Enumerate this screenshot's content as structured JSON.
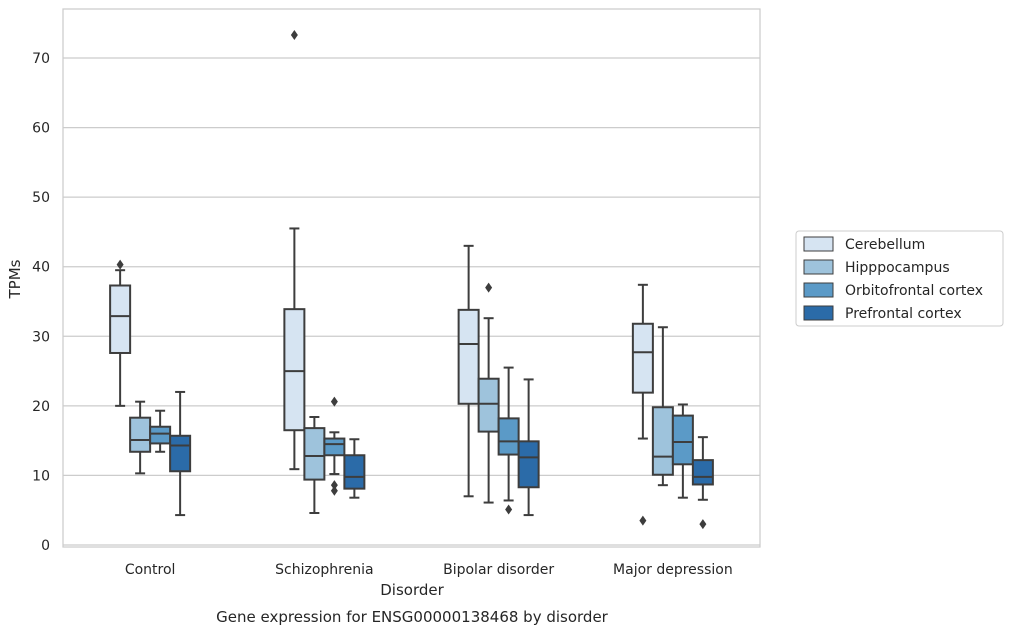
{
  "chart_data": {
    "type": "box",
    "caption": "Gene expression for ENSG00000138468 by disorder",
    "xlabel": "Disorder",
    "ylabel": "TPMs",
    "ylim": [
      -0.5,
      77
    ],
    "yticks": [
      0,
      10,
      20,
      30,
      40,
      50,
      60,
      70
    ],
    "grid": "horizontal",
    "legend_position": "right",
    "categories": [
      "Control",
      "Schizophrenia",
      "Bipolar disorder",
      "Major depression"
    ],
    "series": [
      {
        "name": "Cerebellum",
        "color": "#d6e4f2",
        "boxes": [
          {
            "whislo": 20.0,
            "q1": 27.6,
            "med": 32.9,
            "q3": 37.3,
            "whishi": 39.5,
            "fliers": [
              40.3
            ]
          },
          {
            "whislo": 10.9,
            "q1": 16.5,
            "med": 25.0,
            "q3": 33.9,
            "whishi": 45.5,
            "fliers": [
              73.3
            ]
          },
          {
            "whislo": 7.0,
            "q1": 20.3,
            "med": 28.9,
            "q3": 33.8,
            "whishi": 43.0,
            "fliers": []
          },
          {
            "whislo": 15.3,
            "q1": 21.9,
            "med": 27.7,
            "q3": 31.8,
            "whishi": 37.4,
            "fliers": [
              3.5
            ]
          }
        ]
      },
      {
        "name": "Hipppocampus",
        "color": "#9ec3dc",
        "boxes": [
          {
            "whislo": 10.3,
            "q1": 13.4,
            "med": 15.1,
            "q3": 18.3,
            "whishi": 20.6,
            "fliers": []
          },
          {
            "whislo": 4.6,
            "q1": 9.4,
            "med": 12.8,
            "q3": 16.8,
            "whishi": 18.4,
            "fliers": []
          },
          {
            "whislo": 6.1,
            "q1": 16.3,
            "med": 20.3,
            "q3": 23.9,
            "whishi": 32.6,
            "fliers": [
              37.0
            ]
          },
          {
            "whislo": 8.6,
            "q1": 10.1,
            "med": 12.7,
            "q3": 19.8,
            "whishi": 31.3,
            "fliers": []
          }
        ]
      },
      {
        "name": "Orbitofrontal cortex",
        "color": "#5b9ac7",
        "boxes": [
          {
            "whislo": 13.4,
            "q1": 14.6,
            "med": 16.0,
            "q3": 17.0,
            "whishi": 19.3,
            "fliers": []
          },
          {
            "whislo": 10.2,
            "q1": 12.9,
            "med": 14.5,
            "q3": 15.3,
            "whishi": 16.2,
            "fliers": [
              20.6,
              8.6,
              7.8
            ]
          },
          {
            "whislo": 6.4,
            "q1": 13.0,
            "med": 14.9,
            "q3": 18.2,
            "whishi": 25.5,
            "fliers": [
              5.1
            ]
          },
          {
            "whislo": 6.8,
            "q1": 11.6,
            "med": 14.8,
            "q3": 18.6,
            "whishi": 20.2,
            "fliers": []
          }
        ]
      },
      {
        "name": "Prefrontal cortex",
        "color": "#2b6ba8",
        "boxes": [
          {
            "whislo": 4.3,
            "q1": 10.6,
            "med": 14.3,
            "q3": 15.7,
            "whishi": 22.0,
            "fliers": []
          },
          {
            "whislo": 6.8,
            "q1": 8.1,
            "med": 9.8,
            "q3": 12.9,
            "whishi": 15.2,
            "fliers": []
          },
          {
            "whislo": 4.3,
            "q1": 8.3,
            "med": 12.6,
            "q3": 14.9,
            "whishi": 23.8,
            "fliers": []
          },
          {
            "whislo": 6.5,
            "q1": 8.7,
            "med": 9.8,
            "q3": 12.2,
            "whishi": 15.5,
            "fliers": [
              3.0
            ]
          }
        ]
      }
    ]
  }
}
